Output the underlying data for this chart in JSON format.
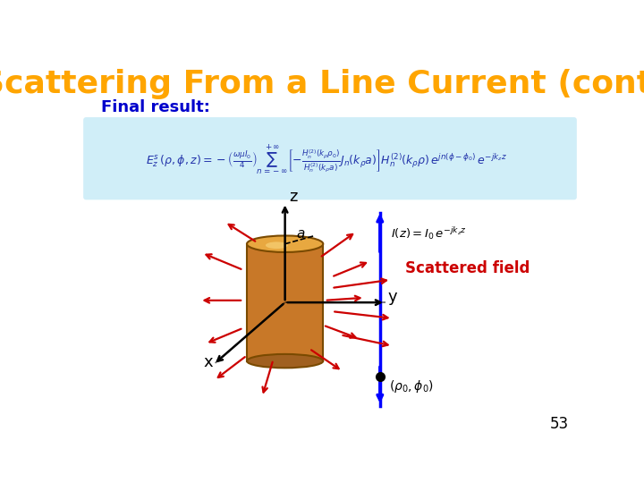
{
  "title": "Scattering From a Line Current (cont.)",
  "title_color": "#FFA500",
  "title_fontsize": 26,
  "bg_color": "#ffffff",
  "subtitle": "Final result:",
  "subtitle_color": "#0000CC",
  "subtitle_fontsize": 13,
  "page_number": "53",
  "formula_box_color": "#D0EEF8",
  "scattered_field_label": "Scattered field",
  "arrow_color": "#CC0000",
  "blue_line_color": "#0000FF",
  "z_label": "z",
  "y_label": "y",
  "x_label": "x",
  "a_label": "a"
}
